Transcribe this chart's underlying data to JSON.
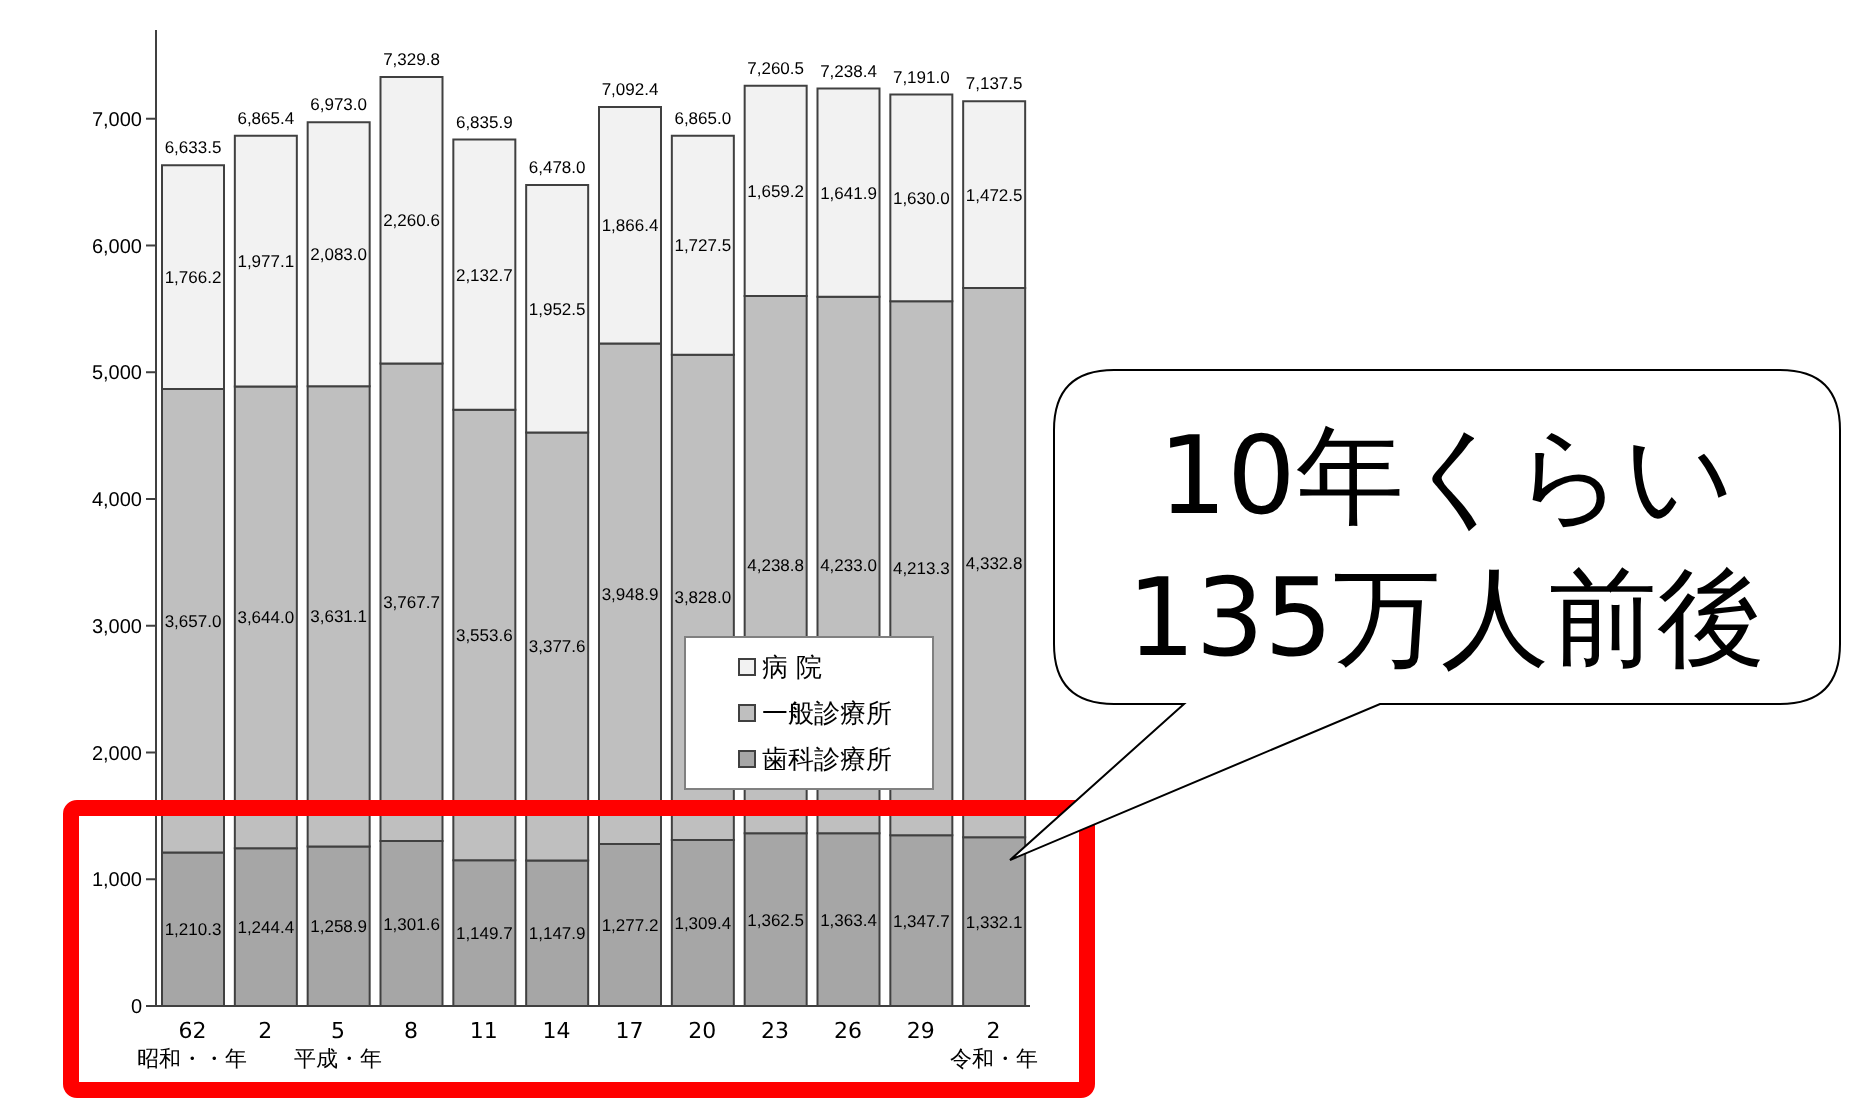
{
  "chart_data": {
    "type": "bar",
    "stacked": true,
    "categories": [
      "62\n昭和・・年",
      "2",
      "5\n平成・年",
      "8",
      "11",
      "14",
      "17",
      "20",
      "23",
      "26",
      "29",
      "2\n令和・年"
    ],
    "series": [
      {
        "name": "歯科診療所",
        "color": "#a6a6a6",
        "values": [
          1210.3,
          1244.4,
          1258.9,
          1301.6,
          1149.7,
          1147.9,
          1277.2,
          1309.4,
          1362.5,
          1363.4,
          1347.7,
          1332.1
        ],
        "value_labels": [
          "1,210.3",
          "1,244.4",
          "1,258.9",
          "1,301.6",
          "1,149.7",
          "1,147.9",
          "1,277.2",
          "1,309.4",
          "1,362.5",
          "1,363.4",
          "1,347.7",
          "1,332.1"
        ]
      },
      {
        "name": "一般診療所",
        "color": "#bfbfbf",
        "values": [
          3657.0,
          3644.0,
          3631.1,
          3767.7,
          3553.6,
          3377.6,
          3948.9,
          3828.0,
          4238.8,
          4233.0,
          4213.3,
          4332.8
        ],
        "value_labels": [
          "3,657.0",
          "3,644.0",
          "3,631.1",
          "3,767.7",
          "3,553.6",
          "3,377.6",
          "3,948.9",
          "3,828.0",
          "4,238.8",
          "4,233.0",
          "4,213.3",
          "4,332.8"
        ]
      },
      {
        "name": "病 院",
        "color": "#f2f2f2",
        "values": [
          1766.2,
          1977.1,
          2083.0,
          2260.6,
          2132.7,
          1952.5,
          1866.4,
          1727.5,
          1659.2,
          1641.9,
          1630.0,
          1472.5
        ],
        "value_labels": [
          "1,766.2",
          "1,977.1",
          "2,083.0",
          "2,260.6",
          "2,132.7",
          "1,952.5",
          "1,866.4",
          "1,727.5",
          "1,659.2",
          "1,641.9",
          "1,630.0",
          "1,472.5"
        ]
      }
    ],
    "totals": [
      "6,633.5",
      "6,865.4",
      "6,973.0",
      "7,329.8",
      "6,835.9",
      "6,478.0",
      "7,092.4",
      "6,865.0",
      "7,260.5",
      "7,238.4",
      "7,191.0",
      "7,137.5"
    ],
    "ylim": [
      0,
      7700
    ],
    "yticks": [
      0,
      {
        "value": 1000,
        "label": "1,000"
      },
      {
        "value": 2000,
        "label": "2,000"
      },
      {
        "value": 3000,
        "label": "3,000"
      },
      {
        "value": 4000,
        "label": "4,000"
      },
      {
        "value": 5000,
        "label": "5,000"
      },
      {
        "value": 6000,
        "label": "6,000"
      },
      {
        "value": 7000,
        "label": "7,000"
      }
    ],
    "legend": "bottom right",
    "annotations": [
      "10年くらい\n135万人前後"
    ]
  }
}
